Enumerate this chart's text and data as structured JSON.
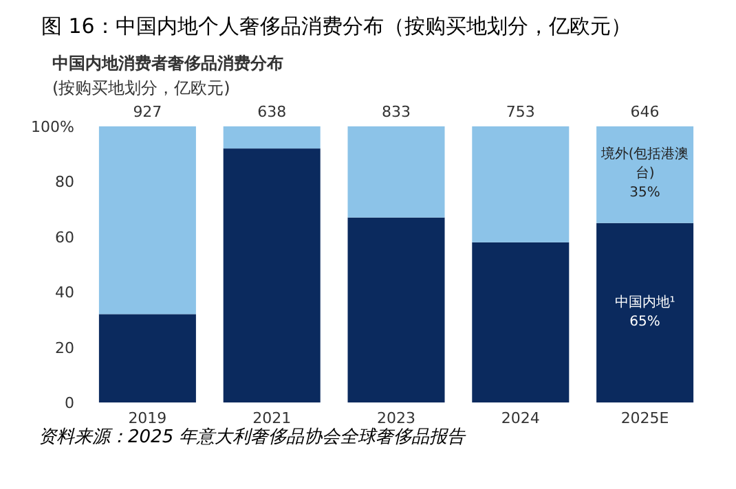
{
  "chart_data": {
    "type": "bar",
    "stacked": true,
    "title": "图 16：中国内地个人奢侈品消费分布（按购买地划分，亿欧元）",
    "subtitle": "中国内地消费者奢侈品消费分布",
    "annotations": [
      "(按购买地划分，亿欧元)",
      "资料来源：2025 年意大利奢侈品协会全球奢侈品报告",
      {
        "text": "927",
        "x": "2019",
        "y": 100
      },
      {
        "text": "638",
        "x": "2021",
        "y": 100
      },
      {
        "text": "833",
        "x": "2023",
        "y": 100
      },
      {
        "text": "753",
        "x": "2024",
        "y": 100
      },
      {
        "text": "646",
        "x": "2025E",
        "y": 100
      }
    ],
    "categories": [
      "2019",
      "2021",
      "2023",
      "2024",
      "2025E"
    ],
    "series": [
      {
        "name": "中国内地¹",
        "color": "#0b2a5e",
        "values": [
          32,
          92,
          67,
          58,
          65
        ],
        "value_labels": [
          null,
          null,
          null,
          null,
          "65%"
        ]
      },
      {
        "name": "境外(包括港澳台)",
        "color": "#8cc3e8",
        "values": [
          68,
          8,
          33,
          42,
          35
        ],
        "value_labels": [
          null,
          null,
          null,
          null,
          "35%"
        ]
      }
    ],
    "ylim": [
      0,
      100
    ],
    "yticks": [
      0,
      20,
      40,
      60,
      80,
      {
        "value": 100,
        "label": "100%"
      }
    ],
    "grid": false
  }
}
